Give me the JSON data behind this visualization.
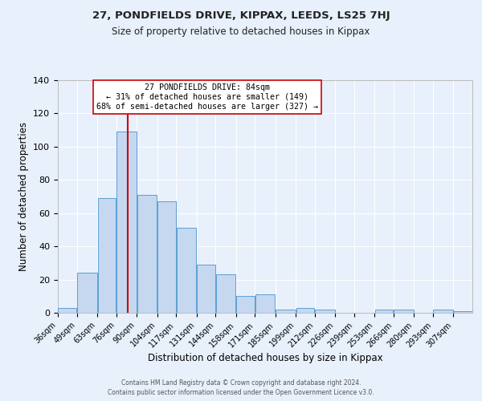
{
  "title": "27, PONDFIELDS DRIVE, KIPPAX, LEEDS, LS25 7HJ",
  "subtitle": "Size of property relative to detached houses in Kippax",
  "xlabel": "Distribution of detached houses by size in Kippax",
  "ylabel": "Number of detached properties",
  "bar_labels": [
    "36sqm",
    "49sqm",
    "63sqm",
    "76sqm",
    "90sqm",
    "104sqm",
    "117sqm",
    "131sqm",
    "144sqm",
    "158sqm",
    "171sqm",
    "185sqm",
    "199sqm",
    "212sqm",
    "226sqm",
    "239sqm",
    "253sqm",
    "266sqm",
    "280sqm",
    "293sqm",
    "307sqm"
  ],
  "bar_values": [
    3,
    24,
    69,
    109,
    71,
    67,
    51,
    29,
    23,
    10,
    11,
    2,
    3,
    2,
    0,
    0,
    2,
    2,
    0,
    2,
    1
  ],
  "bin_edges": [
    36,
    49,
    63,
    76,
    90,
    104,
    117,
    131,
    144,
    158,
    171,
    185,
    199,
    212,
    226,
    239,
    253,
    266,
    280,
    293,
    307,
    320
  ],
  "bar_color": "#c5d8f0",
  "bar_edge_color": "#5a9fd4",
  "background_color": "#e8f0fb",
  "grid_color": "#ffffff",
  "vline_x": 84,
  "vline_color": "#cc0000",
  "annotation_title": "27 PONDFIELDS DRIVE: 84sqm",
  "annotation_line1": "← 31% of detached houses are smaller (149)",
  "annotation_line2": "68% of semi-detached houses are larger (327) →",
  "annotation_box_color": "#ffffff",
  "annotation_box_edge": "#cc0000",
  "ylim": [
    0,
    140
  ],
  "yticks": [
    0,
    20,
    40,
    60,
    80,
    100,
    120,
    140
  ],
  "footer1": "Contains HM Land Registry data © Crown copyright and database right 2024.",
  "footer2": "Contains public sector information licensed under the Open Government Licence v3.0."
}
